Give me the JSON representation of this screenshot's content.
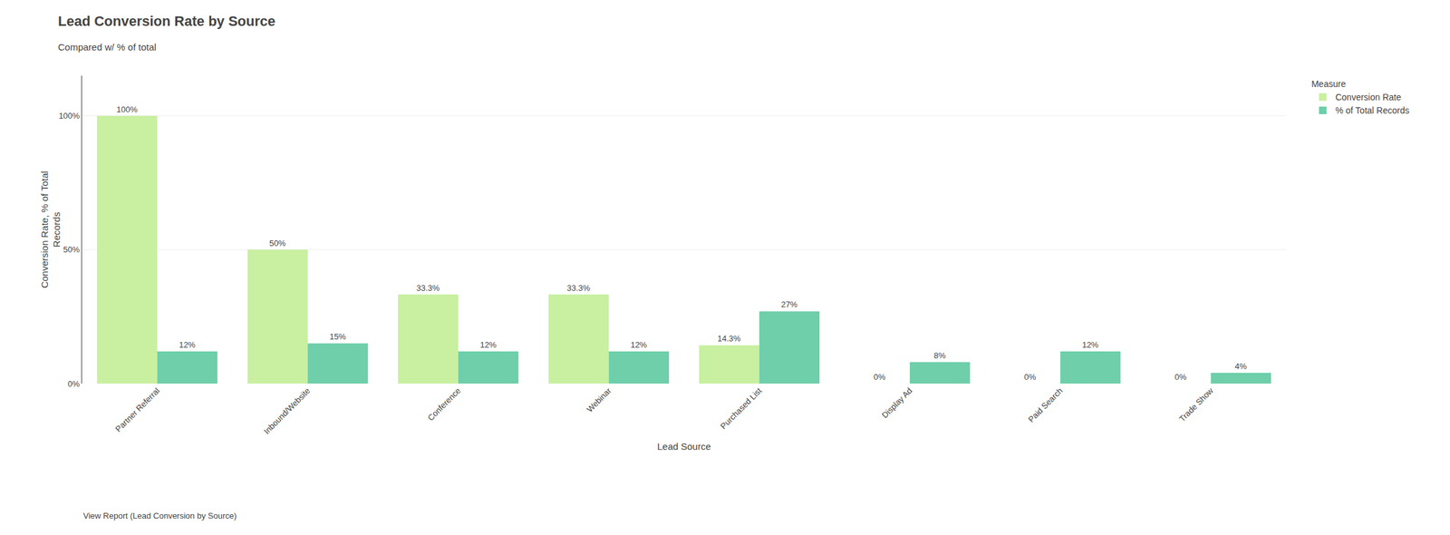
{
  "chart_data": {
    "type": "bar",
    "title": "Lead Conversion Rate by Source",
    "subtitle": "Compared w/ % of total",
    "xlabel": "Lead Source",
    "ylabel": "Conversion Rate, % of Total\nRecords",
    "annotations": [
      "View Report (Lead Conversion by Source)"
    ],
    "categories": [
      "Partner Referral",
      "Inbound/Website",
      "Conference",
      "Webinar",
      "Purchased List",
      "Display Ad",
      "Paid Search",
      "Trade Show"
    ],
    "series": [
      {
        "name": "Conversion Rate",
        "color": "#c8f0a0",
        "values": [
          100,
          50,
          33.3,
          33.3,
          14.3,
          0,
          0,
          0
        ],
        "value_labels": [
          "100%",
          "50%",
          "33.3%",
          "33.3%",
          "14.3%",
          "0%",
          "0%",
          "0%"
        ]
      },
      {
        "name": "% of Total Records",
        "color": "#6ecfaa",
        "values": [
          12,
          15,
          12,
          12,
          27,
          8,
          12,
          4
        ],
        "value_labels": [
          "12%",
          "15%",
          "12%",
          "12%",
          "27%",
          "8%",
          "12%",
          "4%"
        ]
      }
    ],
    "legend_title": "Measure",
    "legend": "upper right",
    "ylim": [
      0,
      115
    ],
    "yticks": [
      {
        "value": 0,
        "label": "0%"
      },
      {
        "value": 50,
        "label": "50%"
      },
      {
        "value": 100,
        "label": "100%"
      }
    ],
    "grid": true,
    "data_labels": true
  }
}
